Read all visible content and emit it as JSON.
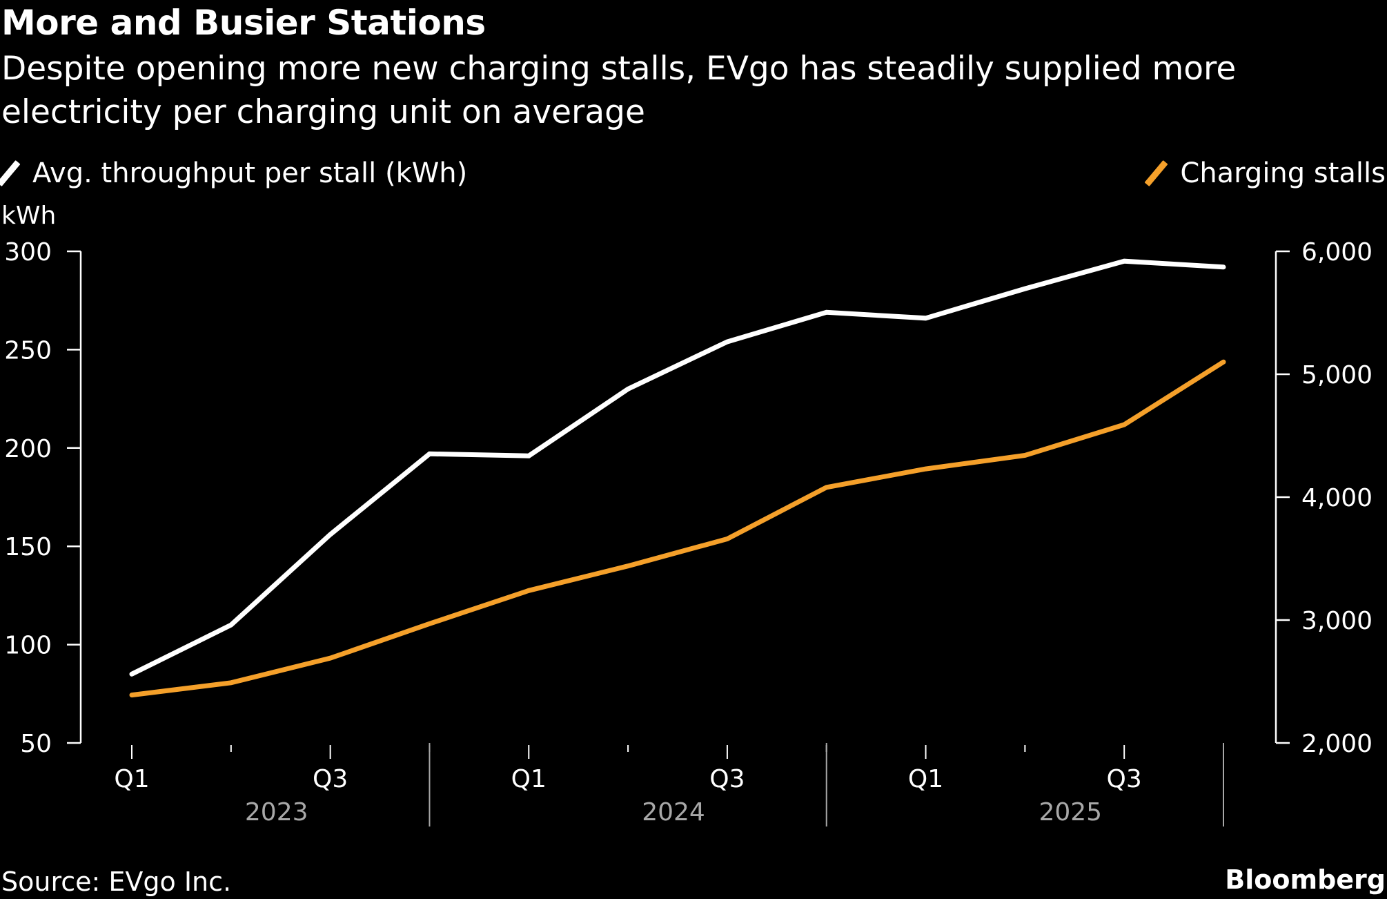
{
  "header": {
    "title": "More and Busier Stations",
    "subtitle": "Despite opening more new charging stalls, EVgo has steadily supplied more electricity per charging unit on average"
  },
  "footer": {
    "source": "Source: EVgo Inc.",
    "brand": "Bloomberg"
  },
  "colors": {
    "background": "#000000",
    "throughput": "#ffffff",
    "stalls": "#f5a02a",
    "year_label": "#a8a8a8"
  },
  "chart_data": {
    "type": "line",
    "title": "More and Busier Stations",
    "subtitle": "Despite opening more new charging stalls, EVgo has steadily supplied more electricity per charging unit on average",
    "x": [
      "Q1 2023",
      "Q2 2023",
      "Q3 2023",
      "Q4 2023",
      "Q1 2024",
      "Q2 2024",
      "Q3 2024",
      "Q4 2024",
      "Q1 2025",
      "Q2 2025",
      "Q3 2025",
      "Q4 2025"
    ],
    "x_tick_labels": [
      "Q1",
      "",
      "Q3",
      "",
      "Q1",
      "",
      "Q3",
      "",
      "Q1",
      "",
      "Q3",
      ""
    ],
    "x_year_labels": [
      "2023",
      "2024",
      "2025"
    ],
    "left_axis": {
      "label": "kWh",
      "ylim": [
        50,
        300
      ],
      "ticks": [
        300,
        250,
        200,
        150,
        100,
        50
      ],
      "tick_labels": [
        "300",
        "250",
        "200",
        "150",
        "100",
        "50"
      ]
    },
    "right_axis": {
      "label": "",
      "ylim": [
        2000,
        6000
      ],
      "ticks": [
        6000,
        5000,
        4000,
        3000,
        2000
      ],
      "tick_labels": [
        "6,000",
        "5,000",
        "4,000",
        "3,000",
        "2,000"
      ]
    },
    "series": [
      {
        "name": "Avg. throughput per stall (kWh)",
        "axis": "left",
        "color": "#ffffff",
        "values": [
          85,
          110,
          156,
          197,
          196,
          230,
          254,
          269,
          266,
          281,
          295,
          292
        ]
      },
      {
        "name": "Charging stalls",
        "axis": "right",
        "color": "#f5a02a",
        "values": [
          2390,
          2490,
          2690,
          2970,
          3240,
          3440,
          3660,
          4080,
          4230,
          4340,
          4590,
          5100
        ]
      }
    ],
    "legend": {
      "placement": "top",
      "items": [
        "Avg. throughput per stall (kWh)",
        "Charging stalls"
      ]
    },
    "grid": false
  }
}
